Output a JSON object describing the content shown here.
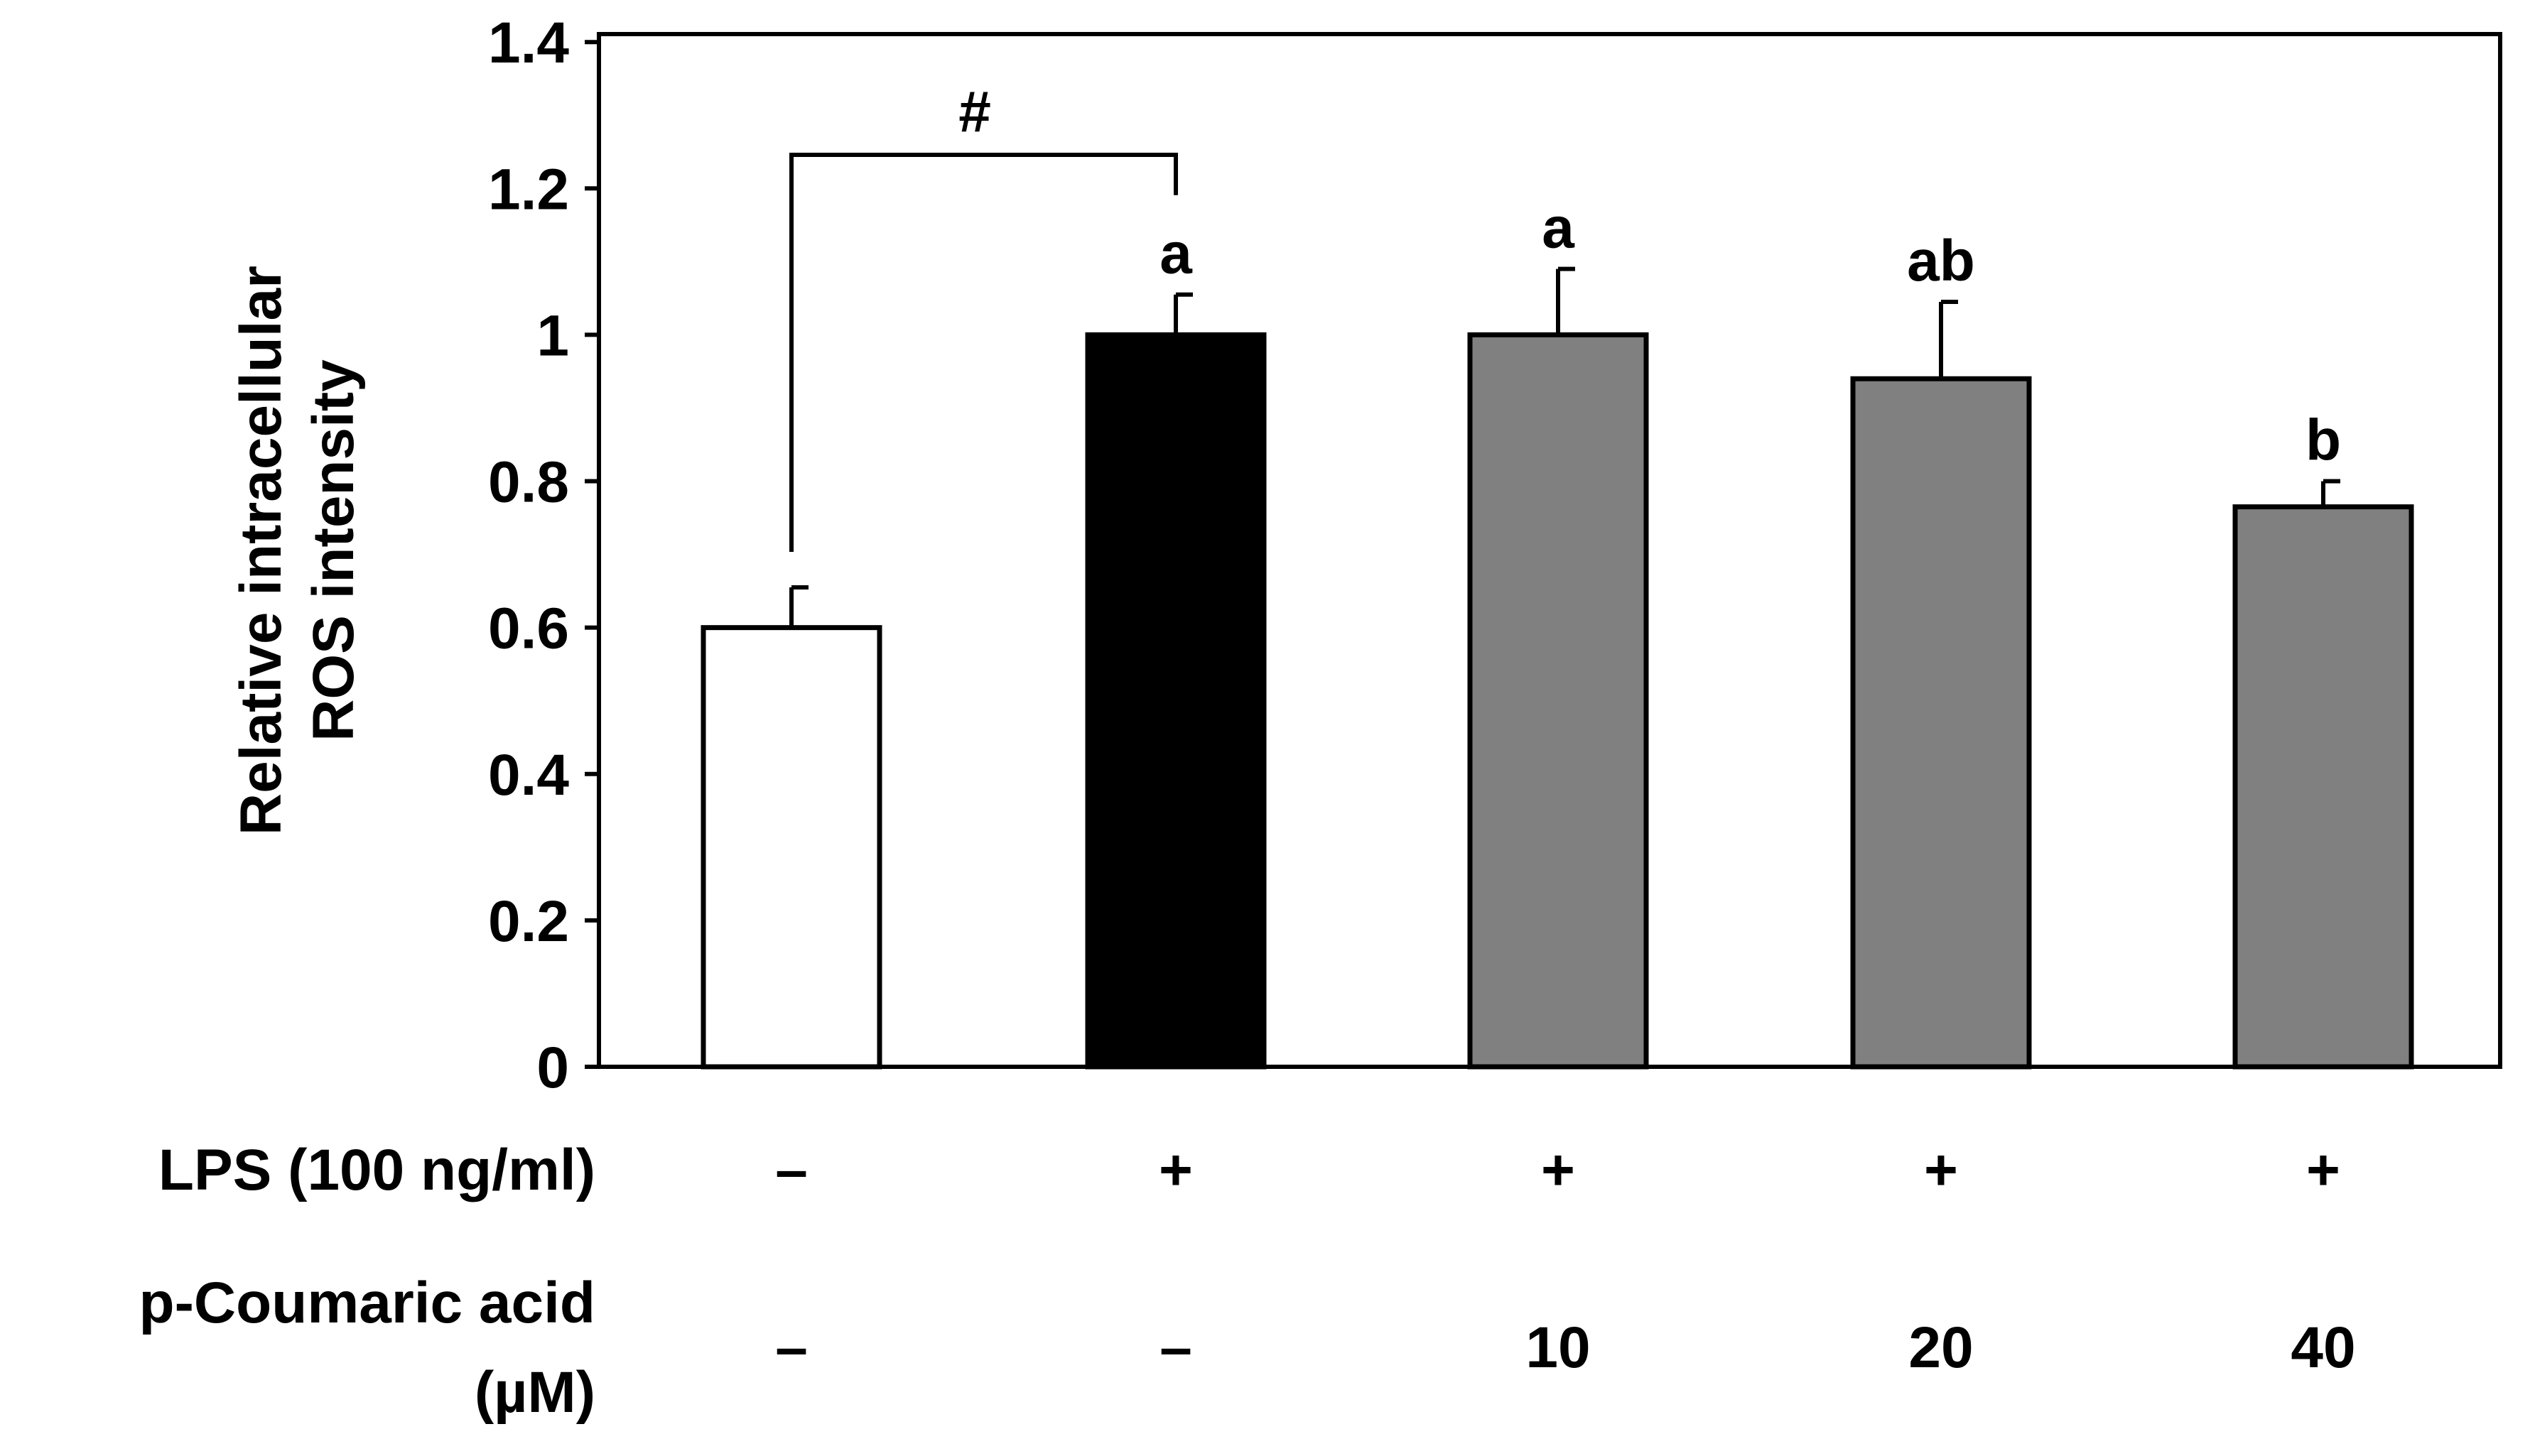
{
  "chart_data": {
    "type": "bar",
    "title": "",
    "ylabel_lines": [
      "Relative intracellular",
      "ROS intensity"
    ],
    "ylim": [
      0,
      1.4
    ],
    "yticks": [
      "0",
      "0.2",
      "0.4",
      "0.6",
      "0.8",
      "1",
      "1.2",
      "1.4"
    ],
    "ytick_values": [
      0,
      0.2,
      0.4,
      0.6,
      0.8,
      1.0,
      1.2,
      1.4
    ],
    "grid": false,
    "values": [
      0.6,
      1.0,
      1.0,
      0.94,
      0.765
    ],
    "errors": [
      0.055,
      0.055,
      0.09,
      0.105,
      0.035
    ],
    "bar_colors": [
      "#ffffff",
      "#000000",
      "#808080",
      "#808080",
      "#808080"
    ],
    "significance_letters": [
      "",
      "a",
      "a",
      "ab",
      "b"
    ],
    "bracket": {
      "from": 0,
      "to": 1,
      "label": "#"
    },
    "conditions": [
      {
        "label_lines": [
          "LPS (100 ng/ml)"
        ],
        "values": [
          "–",
          "+",
          "+",
          "+",
          "+"
        ]
      },
      {
        "label_lines": [
          "p-Coumaric acid",
          "(µM)"
        ],
        "values": [
          "–",
          "–",
          "10",
          "20",
          "40"
        ]
      }
    ]
  }
}
